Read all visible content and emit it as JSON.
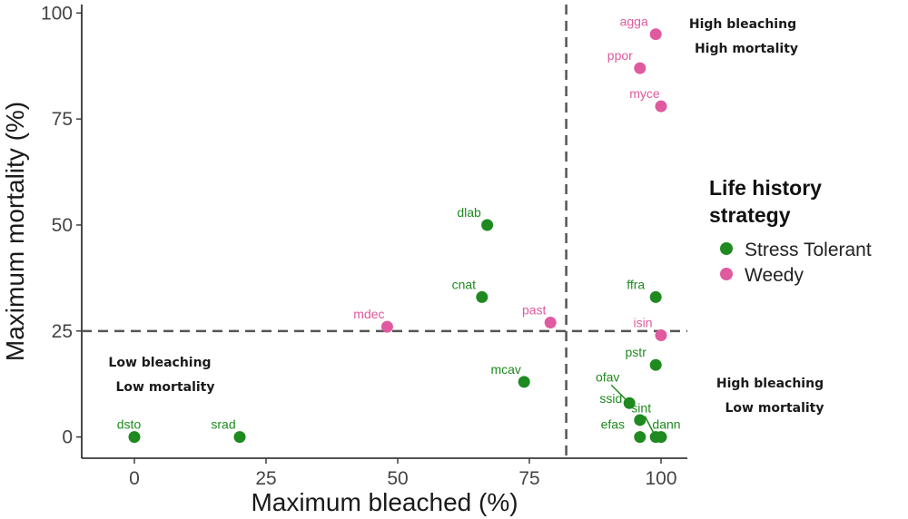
{
  "chart_data": {
    "type": "scatter",
    "xlabel": "Maximum bleached (%)",
    "ylabel": "Maximum mortality (%)",
    "xlim": [
      -10,
      105
    ],
    "ylim": [
      -5,
      102
    ],
    "x_ticks": [
      0,
      25,
      50,
      75,
      100
    ],
    "y_ticks": [
      0,
      25,
      50,
      75,
      100
    ],
    "grid": false,
    "thresholds": {
      "x": 82,
      "y": 25
    },
    "legend": {
      "title_lines": [
        "Life history",
        "strategy"
      ],
      "placement": "right",
      "entries": [
        {
          "name": "Stress Tolerant",
          "color": "#1f8a1f"
        },
        {
          "name": "Weedy",
          "color": "#e05a9f"
        }
      ]
    },
    "quadrant_labels": [
      {
        "lines": [
          "High bleaching",
          "High mortality"
        ],
        "position": "top-right"
      },
      {
        "lines": [
          "Low bleaching",
          "Low mortality"
        ],
        "position": "bottom-left"
      },
      {
        "lines": [
          "High bleaching",
          "Low mortality"
        ],
        "position": "bottom-right"
      }
    ],
    "series": [
      {
        "name": "Stress Tolerant",
        "color": "#1f8a1f",
        "points": [
          {
            "label": "dsto",
            "x": 0,
            "y": 0
          },
          {
            "label": "srad",
            "x": 20,
            "y": 0
          },
          {
            "label": "dlab",
            "x": 67,
            "y": 50
          },
          {
            "label": "cnat",
            "x": 66,
            "y": 33
          },
          {
            "label": "mcav",
            "x": 74,
            "y": 13
          },
          {
            "label": "ffra",
            "x": 99,
            "y": 33
          },
          {
            "label": "pstr",
            "x": 99,
            "y": 17
          },
          {
            "label": "ofav",
            "x": 94,
            "y": 8
          },
          {
            "label": "ssid",
            "x": 96,
            "y": 4
          },
          {
            "label": "sint",
            "x": 99,
            "y": 0
          },
          {
            "label": "efas",
            "x": 96,
            "y": 0
          },
          {
            "label": "dann",
            "x": 100,
            "y": 0
          }
        ]
      },
      {
        "name": "Weedy",
        "color": "#e05a9f",
        "points": [
          {
            "label": "agga",
            "x": 99,
            "y": 95
          },
          {
            "label": "ppor",
            "x": 96,
            "y": 87
          },
          {
            "label": "myce",
            "x": 100,
            "y": 78
          },
          {
            "label": "mdec",
            "x": 48,
            "y": 26
          },
          {
            "label": "past",
            "x": 79,
            "y": 27
          },
          {
            "label": "isin",
            "x": 100,
            "y": 24
          }
        ]
      }
    ]
  }
}
